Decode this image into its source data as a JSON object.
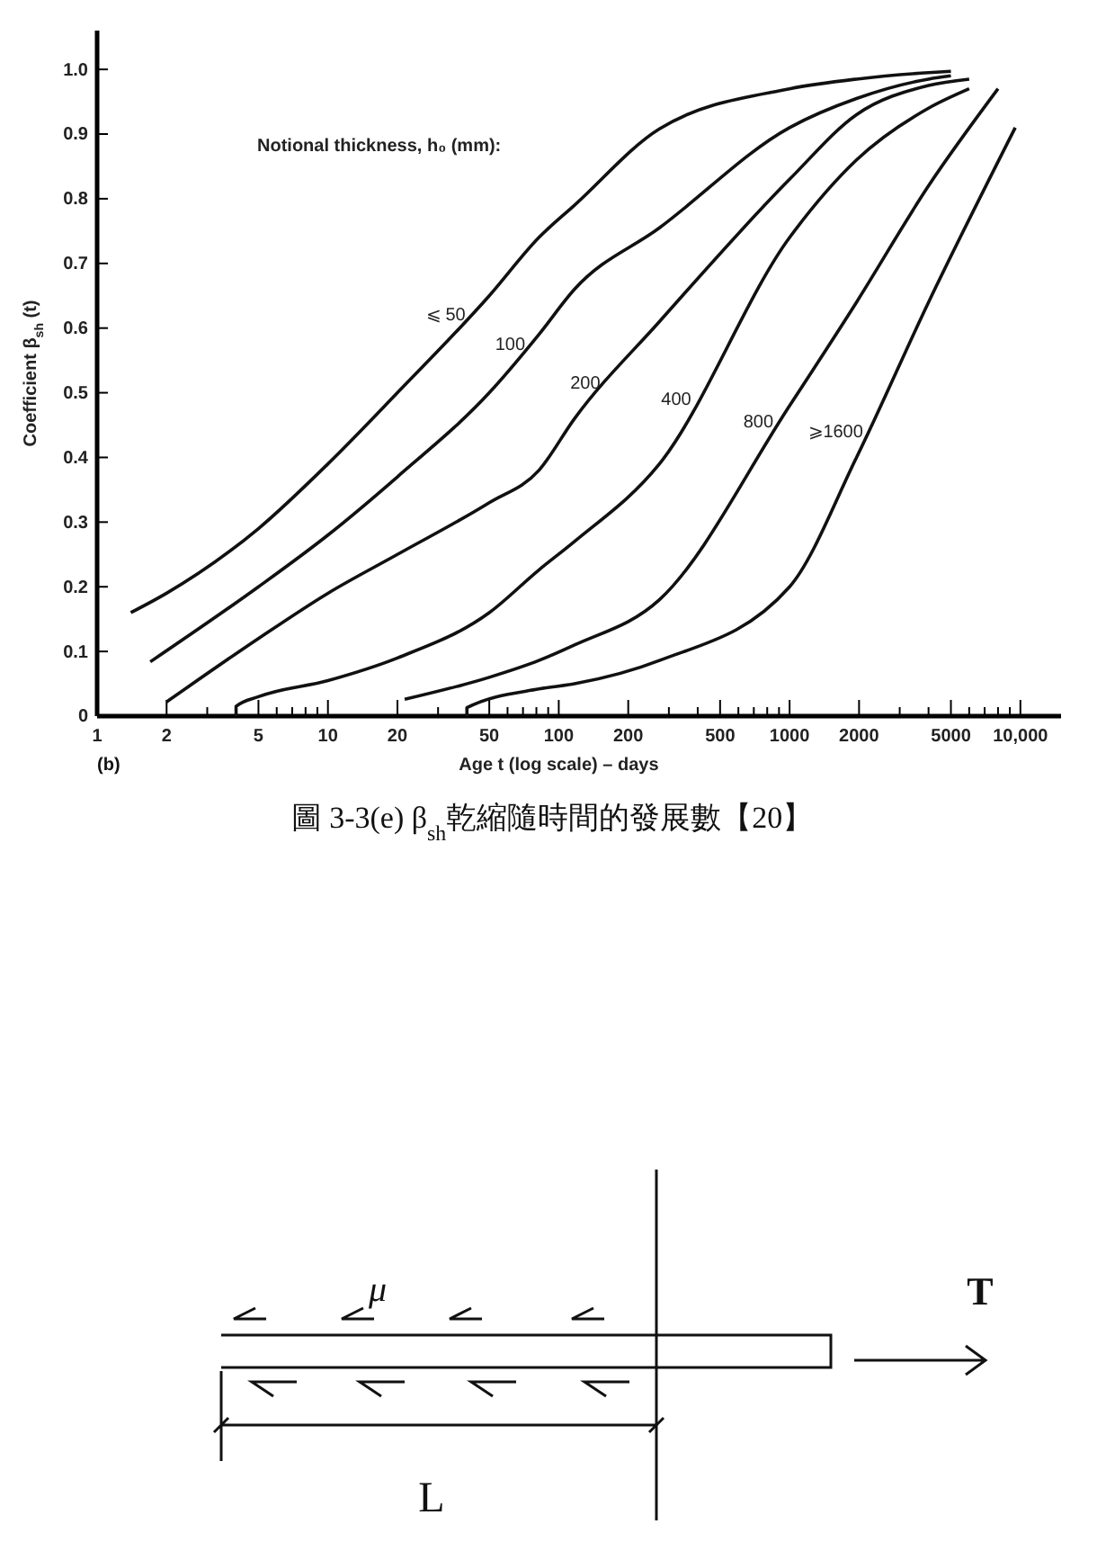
{
  "chart_data": {
    "type": "line",
    "xlabel": "Age t (log scale) – days",
    "ylabel": "Coefficient β$_{sh}$ (t)",
    "legend_title": "Notional thickness, h₀ (mm):",
    "log": "x",
    "xlim": [
      1,
      15000
    ],
    "ylim": [
      0,
      1.06
    ],
    "xticks": [
      1,
      2,
      {
        "value": 3,
        "label": null
      },
      {
        "value": 4,
        "label": null
      },
      5,
      {
        "value": 6,
        "label": null
      },
      {
        "value": 7,
        "label": null
      },
      {
        "value": 8,
        "label": null
      },
      {
        "value": 9,
        "label": null
      },
      10,
      20,
      {
        "value": 30,
        "label": null
      },
      {
        "value": 40,
        "label": null
      },
      50,
      {
        "value": 60,
        "label": null
      },
      {
        "value": 70,
        "label": null
      },
      {
        "value": 80,
        "label": null
      },
      {
        "value": 90,
        "label": null
      },
      100,
      200,
      {
        "value": 300,
        "label": null
      },
      {
        "value": 400,
        "label": null
      },
      500,
      {
        "value": 600,
        "label": null
      },
      {
        "value": 700,
        "label": null
      },
      {
        "value": 800,
        "label": null
      },
      {
        "value": 900,
        "label": null
      },
      1000,
      2000,
      {
        "value": 3000,
        "label": null
      },
      {
        "value": 4000,
        "label": null
      },
      5000,
      {
        "value": 6000,
        "label": null
      },
      {
        "value": 7000,
        "label": null
      },
      {
        "value": 8000,
        "label": null
      },
      {
        "value": 9000,
        "label": null
      },
      {
        "value": 10000,
        "label": "10,000"
      }
    ],
    "yticks": [
      0,
      0.1,
      0.2,
      0.3,
      0.4,
      0.5,
      0.6,
      0.7,
      0.8,
      0.9,
      {
        "value": 1,
        "label": "1.0"
      }
    ],
    "series": [
      {
        "name": "⩽ 50",
        "color": "#111111",
        "x": [
          1.4,
          2,
          5,
          10,
          20,
          50,
          82,
          117,
          273,
          1000,
          1950,
          4000,
          5000
        ],
        "values": [
          0.16,
          0.19,
          0.29,
          0.39,
          0.5,
          0.65,
          0.74,
          0.79,
          0.908,
          0.97,
          0.985,
          0.995,
          0.997
        ]
      },
      {
        "name": "100",
        "color": "#111111",
        "x": [
          1.7,
          5,
          10,
          20,
          50,
          82,
          117,
          273,
          1000,
          1950,
          4000,
          5000
        ],
        "values": [
          0.084,
          0.2,
          0.28,
          0.37,
          0.5,
          0.59,
          0.66,
          0.755,
          0.91,
          0.955,
          0.985,
          0.99
        ]
      },
      {
        "name": "200",
        "color": "#111111",
        "x": [
          2,
          5,
          10,
          20,
          50,
          82,
          117,
          273,
          1000,
          1950,
          4000,
          6000
        ],
        "values": [
          0.022,
          0.12,
          0.19,
          0.25,
          0.33,
          0.38,
          0.46,
          0.61,
          0.83,
          0.93,
          0.975,
          0.985
        ]
      },
      {
        "name": "400",
        "color": "#111111",
        "x": [
          4,
          4,
          5,
          10,
          20,
          50,
          82,
          117,
          273,
          1000,
          1950,
          4000,
          6000
        ],
        "values": [
          0,
          0.015,
          0.03,
          0.055,
          0.09,
          0.16,
          0.226,
          0.27,
          0.39,
          0.74,
          0.86,
          0.94,
          0.97
        ]
      },
      {
        "name": "800",
        "color": "#111111",
        "x": [
          21.5,
          50,
          82,
          117,
          273,
          1000,
          1950,
          4000,
          8000
        ],
        "values": [
          0.026,
          0.06,
          0.086,
          0.11,
          0.18,
          0.48,
          0.64,
          0.82,
          0.97
        ]
      },
      {
        "name": "⩾1600",
        "color": "#111111",
        "x": [
          40,
          40,
          82,
          117,
          273,
          1000,
          1950,
          4000,
          9500
        ],
        "values": [
          0,
          0.013,
          0.042,
          0.05,
          0.086,
          0.2,
          0.4,
          0.64,
          0.91
        ]
      }
    ],
    "annotations": [
      "(b)",
      "圖 3-3(e) β$_{sh}$乾縮隨時間的發展數【20】",
      "μ",
      "T",
      "L"
    ]
  }
}
